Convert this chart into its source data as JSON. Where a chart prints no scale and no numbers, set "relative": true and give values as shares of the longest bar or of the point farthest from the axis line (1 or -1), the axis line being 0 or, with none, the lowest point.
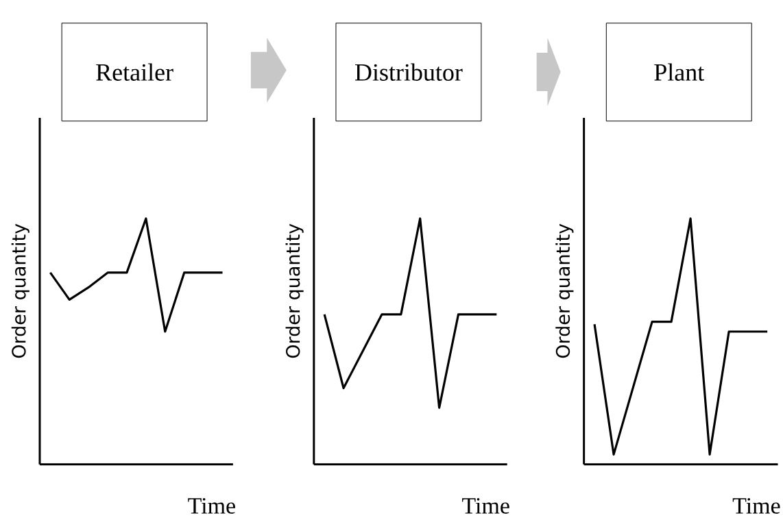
{
  "chart_data": [
    {
      "type": "line",
      "title": "Retailer",
      "xlabel": "Time",
      "ylabel": "Order quantity",
      "relative": true,
      "color": "#000000",
      "categories": [
        null,
        null,
        null,
        null,
        null,
        null,
        null,
        null,
        null,
        null
      ],
      "values": [
        0.78,
        0.67,
        0.72,
        0.78,
        0.78,
        1,
        0.54,
        0.78,
        0.78,
        0.78
      ]
    },
    {
      "type": "line",
      "title": "Distributor",
      "xlabel": "Time",
      "ylabel": "Order quantity",
      "relative": true,
      "color": "#000000",
      "categories": [
        null,
        null,
        null,
        null,
        null,
        null,
        null,
        null,
        null,
        null
      ],
      "values": [
        0.61,
        0.31,
        0.46,
        0.61,
        0.61,
        1,
        0.23,
        0.61,
        0.61,
        0.61
      ]
    },
    {
      "type": "line",
      "title": "Plant",
      "xlabel": "Time",
      "ylabel": "Order quantity",
      "relative": true,
      "color": "#000000",
      "categories": [
        null,
        null,
        null,
        null,
        null,
        null,
        null,
        null,
        null,
        null
      ],
      "values": [
        0.57,
        0.04,
        0.31,
        0.58,
        0.58,
        1,
        0.04,
        0.54,
        0.54,
        0.54
      ]
    }
  ]
}
